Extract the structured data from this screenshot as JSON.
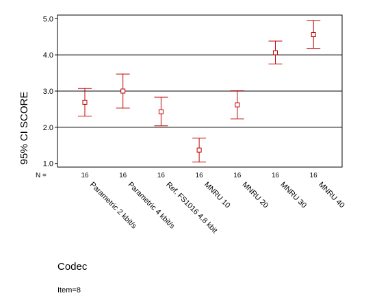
{
  "chart_data": {
    "type": "errorbar",
    "ylabel": "95% CI SCORE",
    "xlabel": "Codec",
    "footnote": "Item=8",
    "n_label": "N =",
    "ylim": [
      0.9,
      5.1
    ],
    "yticks": [
      1.0,
      2.0,
      3.0,
      4.0,
      5.0
    ],
    "ytick_labels": [
      "1.0",
      "2.0",
      "3.0",
      "4.0",
      "5.0"
    ],
    "gridlines_y": [
      2.0,
      3.0,
      4.0
    ],
    "grid": true,
    "categories": [
      "Parametric 2 kbit/s",
      "Parametric 4 kbit/s",
      "Ref. FS1016 4.8 kbit",
      "MNRU 10",
      "MNRU 20",
      "MNRU 30",
      "MNRU 40"
    ],
    "n": [
      "16",
      "16",
      "16",
      "16",
      "16",
      "16",
      "16"
    ],
    "mean": [
      2.69,
      3.0,
      2.43,
      1.37,
      2.62,
      4.06,
      4.56
    ],
    "lower": [
      2.31,
      2.53,
      2.04,
      1.04,
      2.23,
      3.75,
      4.18
    ],
    "upper": [
      3.07,
      3.47,
      2.83,
      1.7,
      3.01,
      4.38,
      4.95
    ],
    "color": "#c00000"
  }
}
